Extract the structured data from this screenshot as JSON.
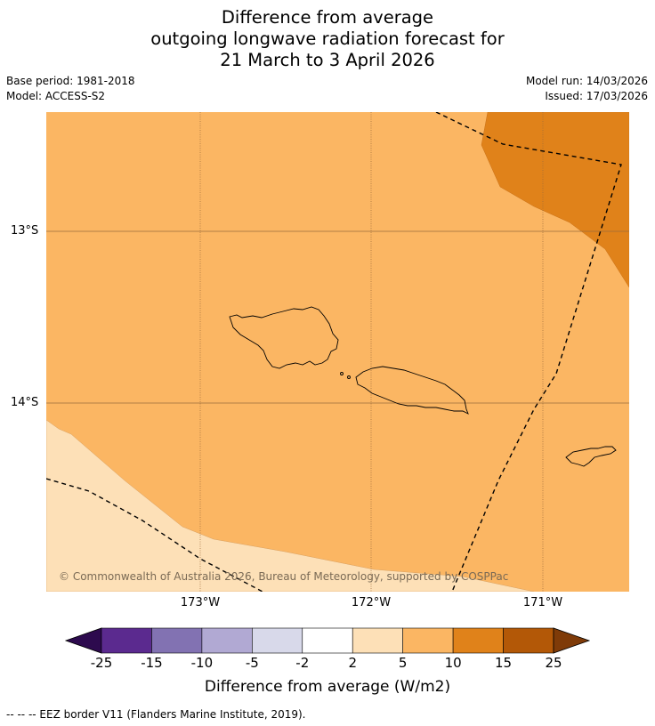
{
  "title": {
    "line1": "Difference from average",
    "line2": "outgoing longwave radiation forecast for",
    "line3": "21 March to 3 April 2026"
  },
  "meta": {
    "base_period": "Base period: 1981-2018",
    "model": "Model: ACCESS-S2",
    "model_run": "Model run: 14/03/2026",
    "issued": "Issued: 17/03/2026"
  },
  "axes": {
    "lat_labels": [
      "13°S",
      "14°S"
    ],
    "lon_labels": [
      "173°W",
      "172°W",
      "171°W"
    ]
  },
  "credit": "© Commonwealth of Australia 2026, Bureau of Meteorology, supported by COSPPac",
  "colorbar": {
    "ticks": [
      "-25",
      "-15",
      "-10",
      "-5",
      "-2",
      "2",
      "5",
      "10",
      "15",
      "25"
    ],
    "colors": [
      "#2d0a4e",
      "#5b2a8f",
      "#8272b2",
      "#b1a9d3",
      "#d8d9ea",
      "#ffffff",
      "#fde0b7",
      "#fbb663",
      "#e0821a",
      "#b35807",
      "#7f3b08"
    ],
    "label": "Difference from average (W/m2)"
  },
  "legend": {
    "text": "--  --  -- EEZ border V11 (Flanders Marine Institute, 2019)."
  },
  "colors": {
    "anomaly_2_5": "#fde0b7",
    "anomaly_5_10": "#fbb663",
    "anomaly_10_15": "#e0821a"
  }
}
